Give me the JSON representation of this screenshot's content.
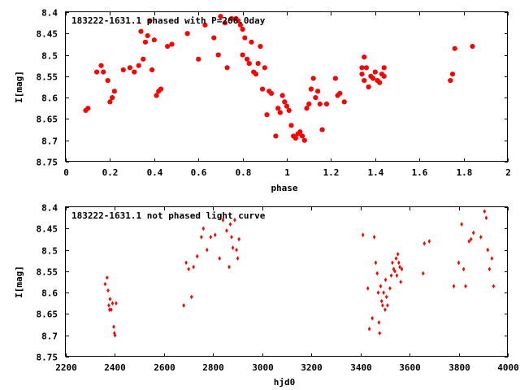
{
  "chart_data": [
    {
      "type": "scatter",
      "title": "183222-1631.1 phased with P=266.0day",
      "xlabel": "phase",
      "ylabel": "I[mag]",
      "xlim": [
        0,
        2
      ],
      "ylim": [
        8.4,
        8.75
      ],
      "y_inverted": true,
      "grid": false,
      "marker_color": "#ff0000",
      "marker": "filled-circle-large",
      "xticks": [
        "0",
        "0.2",
        "0.4",
        "0.6",
        "0.8",
        "1",
        "1.2",
        "1.4",
        "1.6",
        "1.8",
        "2"
      ],
      "yticks": [
        "8.4",
        "8.45",
        "8.5",
        "8.55",
        "8.6",
        "8.65",
        "8.7",
        "8.75"
      ],
      "series": [
        {
          "points": [
            [
              0.09,
              8.63
            ],
            [
              0.1,
              8.625
            ],
            [
              0.14,
              8.54
            ],
            [
              0.16,
              8.525
            ],
            [
              0.17,
              8.54
            ],
            [
              0.19,
              8.56
            ],
            [
              0.2,
              8.61
            ],
            [
              0.21,
              8.6
            ],
            [
              0.22,
              8.585
            ],
            [
              0.26,
              8.535
            ],
            [
              0.29,
              8.53
            ],
            [
              0.31,
              8.54
            ],
            [
              0.33,
              8.525
            ],
            [
              0.34,
              8.445
            ],
            [
              0.35,
              8.51
            ],
            [
              0.36,
              8.47
            ],
            [
              0.37,
              8.455
            ],
            [
              0.38,
              8.42
            ],
            [
              0.39,
              8.535
            ],
            [
              0.4,
              8.465
            ],
            [
              0.41,
              8.595
            ],
            [
              0.42,
              8.585
            ],
            [
              0.43,
              8.58
            ],
            [
              0.46,
              8.48
            ],
            [
              0.48,
              8.475
            ],
            [
              0.55,
              8.45
            ],
            [
              0.6,
              8.51
            ],
            [
              0.63,
              8.43
            ],
            [
              0.67,
              8.46
            ],
            [
              0.69,
              8.5
            ],
            [
              0.7,
              8.41
            ],
            [
              0.72,
              8.425
            ],
            [
              0.73,
              8.53
            ],
            [
              0.75,
              8.415
            ],
            [
              0.77,
              8.415
            ],
            [
              0.78,
              8.42
            ],
            [
              0.79,
              8.43
            ],
            [
              0.8,
              8.44
            ],
            [
              0.8,
              8.5
            ],
            [
              0.81,
              8.46
            ],
            [
              0.82,
              8.51
            ],
            [
              0.83,
              8.52
            ],
            [
              0.84,
              8.47
            ],
            [
              0.85,
              8.54
            ],
            [
              0.86,
              8.545
            ],
            [
              0.87,
              8.52
            ],
            [
              0.88,
              8.48
            ],
            [
              0.89,
              8.58
            ],
            [
              0.9,
              8.53
            ],
            [
              0.91,
              8.64
            ],
            [
              0.92,
              8.585
            ],
            [
              0.93,
              8.59
            ],
            [
              0.95,
              8.69
            ],
            [
              0.96,
              8.625
            ],
            [
              0.97,
              8.635
            ],
            [
              0.98,
              8.595
            ],
            [
              0.99,
              8.61
            ],
            [
              1.0,
              8.62
            ],
            [
              1.01,
              8.63
            ],
            [
              1.02,
              8.665
            ],
            [
              1.03,
              8.69
            ],
            [
              1.04,
              8.695
            ],
            [
              1.05,
              8.685
            ],
            [
              1.06,
              8.68
            ],
            [
              1.07,
              8.69
            ],
            [
              1.08,
              8.7
            ],
            [
              1.09,
              8.625
            ],
            [
              1.1,
              8.615
            ],
            [
              1.11,
              8.58
            ],
            [
              1.12,
              8.555
            ],
            [
              1.13,
              8.6
            ],
            [
              1.14,
              8.585
            ],
            [
              1.15,
              8.615
            ],
            [
              1.16,
              8.675
            ],
            [
              1.18,
              8.615
            ],
            [
              1.22,
              8.555
            ],
            [
              1.23,
              8.595
            ],
            [
              1.24,
              8.59
            ],
            [
              1.26,
              8.61
            ],
            [
              1.34,
              8.53
            ],
            [
              1.34,
              8.545
            ],
            [
              1.35,
              8.505
            ],
            [
              1.35,
              8.56
            ],
            [
              1.36,
              8.53
            ],
            [
              1.37,
              8.575
            ],
            [
              1.38,
              8.55
            ],
            [
              1.39,
              8.555
            ],
            [
              1.4,
              8.54
            ],
            [
              1.41,
              8.56
            ],
            [
              1.42,
              8.565
            ],
            [
              1.43,
              8.545
            ],
            [
              1.44,
              8.53
            ],
            [
              1.44,
              8.55
            ],
            [
              1.74,
              8.56
            ],
            [
              1.75,
              8.545
            ],
            [
              1.76,
              8.485
            ],
            [
              1.84,
              8.48
            ]
          ]
        }
      ]
    },
    {
      "type": "scatter",
      "title": "183222-1631.1 not phased light curve",
      "xlabel": "hjd0",
      "ylabel": "I[mag]",
      "xlim": [
        2200,
        4000
      ],
      "ylim": [
        8.4,
        8.75
      ],
      "y_inverted": true,
      "grid": false,
      "marker_color": "#ff0000",
      "marker": "diamond-small",
      "xticks": [
        "2200",
        "2400",
        "2600",
        "2800",
        "3000",
        "3200",
        "3400",
        "3600",
        "3800",
        "4000"
      ],
      "yticks": [
        "8.4",
        "8.45",
        "8.5",
        "8.55",
        "8.6",
        "8.65",
        "8.7",
        "8.75"
      ],
      "series": [
        {
          "points": [
            [
              2360,
              8.58
            ],
            [
              2368,
              8.565
            ],
            [
              2372,
              8.595
            ],
            [
              2375,
              8.63
            ],
            [
              2378,
              8.64
            ],
            [
              2380,
              8.615
            ],
            [
              2385,
              8.64
            ],
            [
              2390,
              8.625
            ],
            [
              2395,
              8.68
            ],
            [
              2398,
              8.695
            ],
            [
              2400,
              8.7
            ],
            [
              2405,
              8.625
            ],
            [
              2680,
              8.63
            ],
            [
              2690,
              8.53
            ],
            [
              2700,
              8.545
            ],
            [
              2712,
              8.61
            ],
            [
              2720,
              8.54
            ],
            [
              2735,
              8.515
            ],
            [
              2752,
              8.47
            ],
            [
              2760,
              8.45
            ],
            [
              2775,
              8.5
            ],
            [
              2790,
              8.47
            ],
            [
              2808,
              8.465
            ],
            [
              2826,
              8.52
            ],
            [
              2840,
              8.43
            ],
            [
              2855,
              8.455
            ],
            [
              2865,
              8.54
            ],
            [
              2870,
              8.44
            ],
            [
              2875,
              8.47
            ],
            [
              2880,
              8.495
            ],
            [
              2888,
              8.43
            ],
            [
              2895,
              8.5
            ],
            [
              2900,
              8.52
            ],
            [
              2905,
              8.475
            ],
            [
              3410,
              8.465
            ],
            [
              3430,
              8.59
            ],
            [
              3436,
              8.685
            ],
            [
              3448,
              8.66
            ],
            [
              3456,
              8.47
            ],
            [
              3462,
              8.53
            ],
            [
              3468,
              8.555
            ],
            [
              3472,
              8.6
            ],
            [
              3475,
              8.67
            ],
            [
              3478,
              8.695
            ],
            [
              3482,
              8.585
            ],
            [
              3486,
              8.62
            ],
            [
              3490,
              8.63
            ],
            [
              3494,
              8.6
            ],
            [
              3500,
              8.64
            ],
            [
              3502,
              8.57
            ],
            [
              3506,
              8.61
            ],
            [
              3510,
              8.63
            ],
            [
              3520,
              8.59
            ],
            [
              3525,
              8.56
            ],
            [
              3530,
              8.53
            ],
            [
              3535,
              8.545
            ],
            [
              3540,
              8.55
            ],
            [
              3545,
              8.52
            ],
            [
              3548,
              8.56
            ],
            [
              3552,
              8.51
            ],
            [
              3556,
              8.53
            ],
            [
              3560,
              8.54
            ],
            [
              3564,
              8.575
            ],
            [
              3568,
              8.545
            ],
            [
              3655,
              8.555
            ],
            [
              3660,
              8.485
            ],
            [
              3680,
              8.48
            ],
            [
              3780,
              8.585
            ],
            [
              3800,
              8.53
            ],
            [
              3812,
              8.44
            ],
            [
              3820,
              8.545
            ],
            [
              3828,
              8.585
            ],
            [
              3842,
              8.48
            ],
            [
              3850,
              8.475
            ],
            [
              3860,
              8.46
            ],
            [
              3890,
              8.47
            ],
            [
              3905,
              8.41
            ],
            [
              3912,
              8.425
            ],
            [
              3918,
              8.5
            ],
            [
              3925,
              8.545
            ],
            [
              3935,
              8.52
            ],
            [
              3942,
              8.585
            ]
          ]
        }
      ]
    }
  ]
}
